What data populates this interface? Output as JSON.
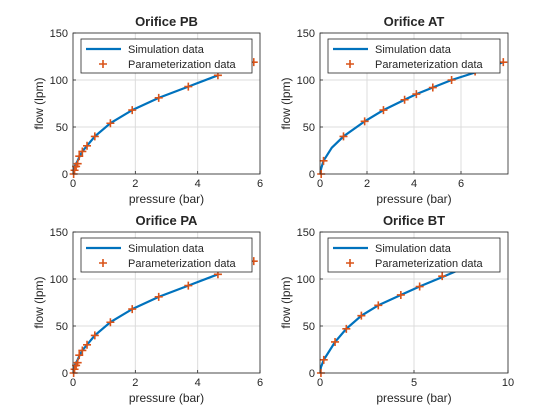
{
  "colors": {
    "simulation_line": "#0072BD",
    "parameterization_marker": "#D95319",
    "grid": "#dcdcdc",
    "axis": "#262626"
  },
  "legend": {
    "simulation": "Simulation data",
    "parameterization": "Parameterization data",
    "placement": "top"
  },
  "chart_data": [
    {
      "type": "line",
      "title": "Orifice PB",
      "xlabel": "pressure (bar)",
      "ylabel": "flow (lpm)",
      "xlim": [
        0,
        6
      ],
      "ylim": [
        0,
        150
      ],
      "xticks": [
        "0",
        "2",
        "4",
        "6"
      ],
      "yticks": [
        "0",
        "50",
        "100",
        "150"
      ],
      "grid": true,
      "series": [
        {
          "name": "Simulation data",
          "x": [
            0,
            0.02,
            0.05,
            0.1,
            0.15,
            0.2,
            0.3,
            0.45,
            0.7,
            1.2,
            1.9,
            2.75,
            3.7,
            4.65
          ],
          "y": [
            0,
            4,
            8,
            11,
            14,
            18,
            24,
            30,
            40,
            54,
            68,
            81,
            93,
            105
          ]
        },
        {
          "name": "Parameterization data",
          "x": [
            0.02,
            0.05,
            0.1,
            0.15,
            0.2,
            0.3,
            0.45,
            0.7,
            1.2,
            1.9,
            2.75,
            3.7,
            4.65,
            5.8
          ],
          "y": [
            0,
            4,
            8,
            11,
            19,
            24,
            30,
            40,
            54,
            68,
            81,
            93,
            105,
            119
          ]
        }
      ]
    },
    {
      "type": "line",
      "title": "Orifice AT",
      "xlabel": "pressure (bar)",
      "ylabel": "flow (lpm)",
      "xlim": [
        0,
        8
      ],
      "ylim": [
        0,
        150
      ],
      "xticks": [
        "0",
        "2",
        "4",
        "6"
      ],
      "yticks": [
        "0",
        "50",
        "100",
        "150"
      ],
      "grid": true,
      "series": [
        {
          "name": "Simulation data",
          "x": [
            0,
            0.05,
            0.15,
            0.5,
            1,
            1.9,
            2.7,
            3.6,
            4.1,
            4.8,
            5.6,
            6.6,
            7.8
          ],
          "y": [
            0,
            6,
            14,
            28,
            40,
            56,
            68,
            79,
            85,
            92,
            100,
            108,
            119
          ]
        },
        {
          "name": "Parameterization data",
          "x": [
            0.05,
            0.15,
            1,
            1.9,
            2.7,
            3.6,
            4.1,
            4.8,
            5.6,
            6.6,
            7.8
          ],
          "y": [
            0,
            14,
            40,
            56,
            68,
            79,
            85,
            92,
            100,
            109,
            119
          ]
        }
      ]
    },
    {
      "type": "line",
      "title": "Orifice PA",
      "xlabel": "pressure (bar)",
      "ylabel": "flow (lpm)",
      "xlim": [
        0,
        6
      ],
      "ylim": [
        0,
        150
      ],
      "xticks": [
        "0",
        "2",
        "4",
        "6"
      ],
      "yticks": [
        "0",
        "50",
        "100",
        "150"
      ],
      "grid": true,
      "series": [
        {
          "name": "Simulation data",
          "x": [
            0,
            0.02,
            0.05,
            0.1,
            0.15,
            0.2,
            0.3,
            0.45,
            0.7,
            1.2,
            1.9,
            2.75,
            3.7,
            4.65
          ],
          "y": [
            0,
            4,
            8,
            11,
            14,
            18,
            24,
            30,
            40,
            54,
            68,
            81,
            93,
            105
          ]
        },
        {
          "name": "Parameterization data",
          "x": [
            0.02,
            0.05,
            0.1,
            0.15,
            0.2,
            0.3,
            0.45,
            0.7,
            1.2,
            1.9,
            2.75,
            3.7,
            4.65,
            5.8
          ],
          "y": [
            0,
            4,
            8,
            11,
            19,
            24,
            30,
            40,
            54,
            68,
            81,
            93,
            105,
            119
          ]
        }
      ]
    },
    {
      "type": "line",
      "title": "Orifice BT",
      "xlabel": "pressure (bar)",
      "ylabel": "flow (lpm)",
      "xlim": [
        0,
        10
      ],
      "ylim": [
        0,
        150
      ],
      "xticks": [
        "0",
        "5",
        "10"
      ],
      "yticks": [
        "0",
        "50",
        "100",
        "150"
      ],
      "grid": true,
      "series": [
        {
          "name": "Simulation data",
          "x": [
            0,
            0.05,
            0.2,
            0.8,
            1.4,
            2.2,
            3.1,
            4.3,
            5.3,
            6.5,
            7.2
          ],
          "y": [
            0,
            6,
            14,
            33,
            47,
            61,
            72,
            83,
            92,
            102,
            108
          ]
        },
        {
          "name": "Parameterization data",
          "x": [
            0.05,
            0.2,
            0.8,
            1.4,
            2.2,
            3.1,
            4.3,
            5.3,
            6.5
          ],
          "y": [
            0,
            14,
            33,
            47,
            61,
            72,
            83,
            92,
            103
          ]
        }
      ]
    }
  ]
}
